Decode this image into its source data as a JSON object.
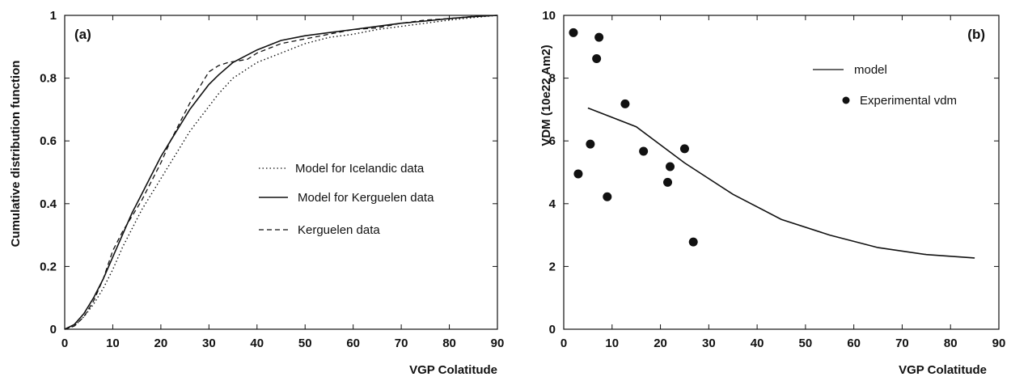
{
  "chart_data": [
    {
      "type": "line",
      "panel_label": "(a)",
      "xlabel": "VGP Colatitude",
      "ylabel": "Cumulative distribution function",
      "xlim": [
        0,
        90
      ],
      "ylim": [
        0,
        1
      ],
      "xticks": [
        "0",
        "10",
        "20",
        "30",
        "40",
        "50",
        "60",
        "70",
        "80",
        "90"
      ],
      "yticks": [
        "0",
        "0.2",
        "0.4",
        "0.6",
        "0.8",
        "1"
      ],
      "legend_position": "center-right",
      "series": [
        {
          "name": "Model for Icelandic data",
          "style": "dotted",
          "x": [
            0,
            2,
            4,
            6,
            8,
            10,
            12,
            14,
            16,
            18,
            20,
            22,
            24,
            26,
            28,
            30,
            32,
            35,
            40,
            45,
            50,
            55,
            60,
            65,
            70,
            75,
            80,
            85,
            90
          ],
          "y": [
            0,
            0.01,
            0.04,
            0.08,
            0.13,
            0.19,
            0.26,
            0.32,
            0.38,
            0.43,
            0.48,
            0.53,
            0.58,
            0.63,
            0.67,
            0.71,
            0.75,
            0.8,
            0.85,
            0.88,
            0.91,
            0.93,
            0.94,
            0.955,
            0.965,
            0.975,
            0.985,
            0.993,
            1.0
          ]
        },
        {
          "name": "Model for Kerguelen data",
          "style": "solid",
          "x": [
            0,
            2,
            4,
            6,
            8,
            10,
            12,
            14,
            16,
            18,
            20,
            22,
            24,
            26,
            28,
            30,
            32,
            35,
            40,
            45,
            50,
            55,
            60,
            65,
            70,
            75,
            80,
            85,
            90
          ],
          "y": [
            0,
            0.015,
            0.05,
            0.1,
            0.16,
            0.23,
            0.3,
            0.37,
            0.43,
            0.49,
            0.55,
            0.6,
            0.65,
            0.7,
            0.74,
            0.78,
            0.81,
            0.85,
            0.89,
            0.92,
            0.935,
            0.945,
            0.955,
            0.965,
            0.975,
            0.982,
            0.99,
            0.996,
            1.0
          ]
        },
        {
          "name": "Kerguelen data",
          "style": "dashed",
          "x": [
            0,
            2,
            4,
            6,
            8,
            10,
            12,
            14,
            16,
            18,
            20,
            22,
            24,
            26,
            28,
            30,
            32,
            34,
            36,
            38,
            40,
            45,
            50,
            55,
            60,
            65,
            70,
            75,
            80,
            85,
            90
          ],
          "y": [
            0,
            0.01,
            0.04,
            0.09,
            0.16,
            0.25,
            0.31,
            0.36,
            0.41,
            0.47,
            0.53,
            0.6,
            0.66,
            0.72,
            0.77,
            0.82,
            0.84,
            0.85,
            0.855,
            0.86,
            0.88,
            0.91,
            0.925,
            0.94,
            0.955,
            0.96,
            0.975,
            0.985,
            0.99,
            0.997,
            1.0
          ]
        }
      ]
    },
    {
      "type": "line",
      "panel_label": "(b)",
      "xlabel": "VGP Colatitude",
      "ylabel": "VDM (10e22 Am2)",
      "xlim": [
        0,
        90
      ],
      "ylim": [
        0,
        10
      ],
      "xticks": [
        "0",
        "10",
        "20",
        "30",
        "40",
        "50",
        "60",
        "70",
        "80",
        "90"
      ],
      "yticks": [
        "0",
        "2",
        "4",
        "6",
        "8",
        "10"
      ],
      "legend_position": "top-right",
      "series": [
        {
          "name": "model",
          "style": "solid",
          "x": [
            5,
            15,
            25,
            35,
            45,
            55,
            65,
            75,
            85
          ],
          "y": [
            7.05,
            6.45,
            5.3,
            4.3,
            3.5,
            3.0,
            2.6,
            2.38,
            2.27
          ]
        },
        {
          "name": "Experimental vdm",
          "style": "markers",
          "x": [
            2,
            3,
            5.5,
            6.8,
            7.3,
            9,
            12.7,
            16.5,
            21.5,
            22,
            25,
            26.8
          ],
          "y": [
            9.45,
            4.95,
            5.9,
            8.62,
            9.3,
            4.22,
            7.18,
            5.67,
            4.68,
            5.18,
            5.75,
            2.78
          ]
        }
      ]
    }
  ]
}
